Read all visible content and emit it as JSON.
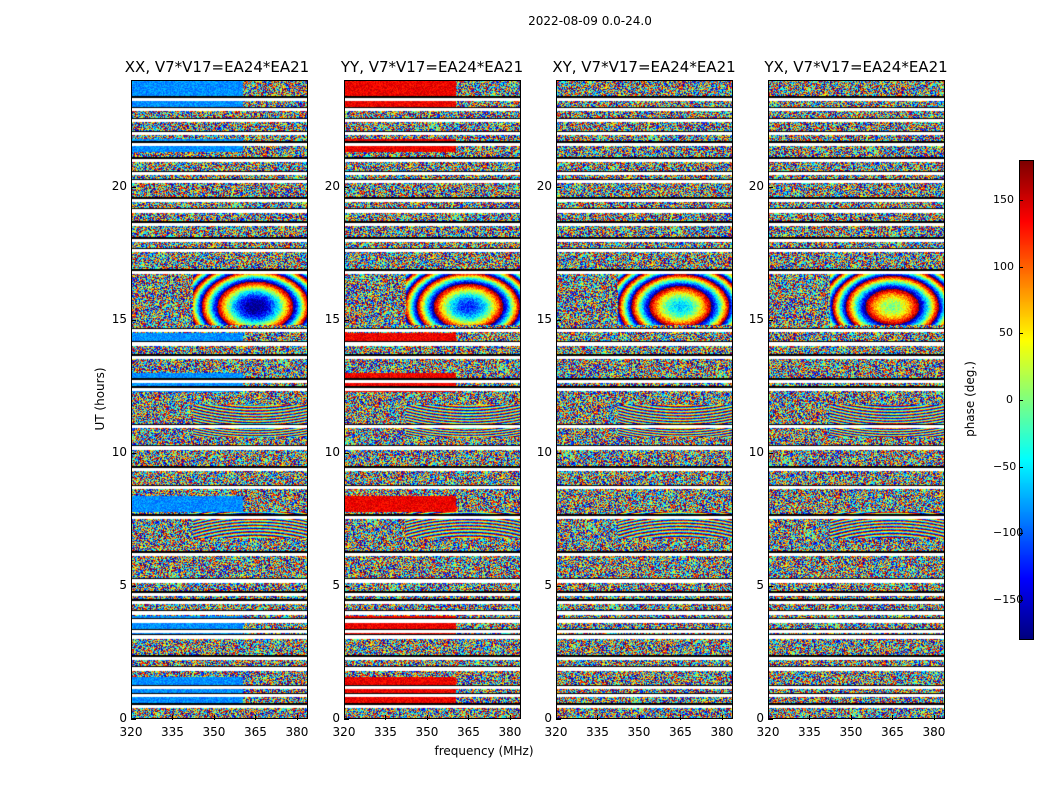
{
  "chart_data": {
    "type": "heatmap",
    "title": "2022-08-09 0.0-24.0",
    "xlabel": "frequency (MHz)",
    "ylabel": "UT (hours)",
    "xlim": [
      320,
      384
    ],
    "ylim": [
      0,
      24
    ],
    "xticks": [
      "320",
      "335",
      "350",
      "365",
      "380"
    ],
    "yticks": [
      "0",
      "5",
      "10",
      "15",
      "20"
    ],
    "xtick_values": [
      320,
      335,
      350,
      365,
      380
    ],
    "ytick_values": [
      0,
      5,
      10,
      15,
      20
    ],
    "panels": [
      {
        "title": "XX, V7*V17=EA24*EA21",
        "pol": "XX",
        "base_phase_deg": -85
      },
      {
        "title": "YY, V7*V17=EA24*EA21",
        "pol": "YY",
        "base_phase_deg": 140
      },
      {
        "title": "XY, V7*V17=EA24*EA21",
        "pol": "XY",
        "base_phase_deg": null
      },
      {
        "title": "YX, V7*V17=EA24*EA21",
        "pol": "YX",
        "base_phase_deg": null
      }
    ],
    "colorbar": {
      "label": "phase (deg.)",
      "colormap": "jet",
      "range": [
        -180,
        180
      ],
      "ticks": [
        "150",
        "100",
        "50",
        "0",
        "−50",
        "−100",
        "−150"
      ],
      "tick_values": [
        150,
        100,
        50,
        0,
        -50,
        -100,
        -150
      ]
    },
    "flagged_ut_hours": [
      0.5,
      0.9,
      1.2,
      1.9,
      2.3,
      3.1,
      3.3,
      3.7,
      4.0,
      4.4,
      4.7,
      5.2,
      6.2,
      7.6,
      8.7,
      9.4,
      10.2,
      11.0,
      12.4,
      12.7,
      13.6,
      14.1,
      14.6,
      16.8,
      17.6,
      18.0,
      18.6,
      19.1,
      19.5,
      20.2,
      20.5,
      21.0,
      21.6,
      22.0,
      22.5,
      22.9,
      23.3
    ]
  }
}
